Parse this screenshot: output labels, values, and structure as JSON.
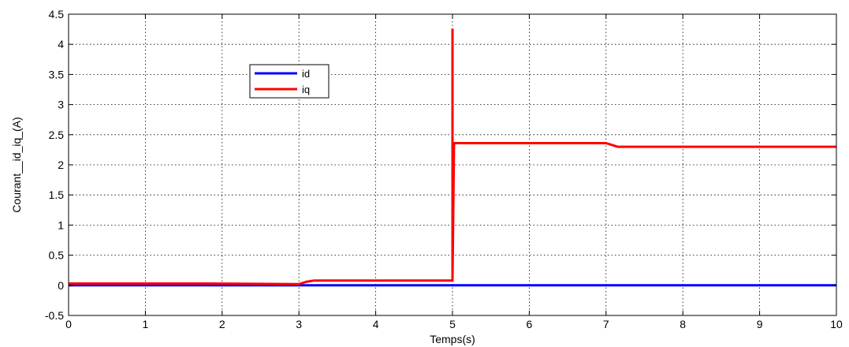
{
  "chart_data": {
    "type": "line",
    "title": "",
    "xlabel": "Temps(s)",
    "ylabel": "Courant__id_iq_(A)",
    "xlim": [
      0,
      10
    ],
    "ylim": [
      -0.5,
      4.5
    ],
    "xticks": [
      0,
      1,
      2,
      3,
      4,
      5,
      6,
      7,
      8,
      9,
      10
    ],
    "yticks": [
      -0.5,
      0,
      0.5,
      1,
      1.5,
      2,
      2.5,
      3,
      3.5,
      4,
      4.5
    ],
    "grid": true,
    "legend_position": "upper-left",
    "series": [
      {
        "name": "id",
        "color": "#0000ff",
        "x": [
          0,
          10
        ],
        "y": [
          0,
          0
        ]
      },
      {
        "name": "iq",
        "color": "#ff0000",
        "x": [
          0,
          1.8,
          3.0,
          3.1,
          3.2,
          5.0,
          5.0,
          5.0,
          5.02,
          5.1,
          7.0,
          7.15,
          10
        ],
        "y": [
          0.03,
          0.03,
          0.02,
          0.06,
          0.08,
          0.08,
          4.26,
          0.08,
          2.36,
          2.36,
          2.36,
          2.3,
          2.3
        ]
      }
    ]
  }
}
